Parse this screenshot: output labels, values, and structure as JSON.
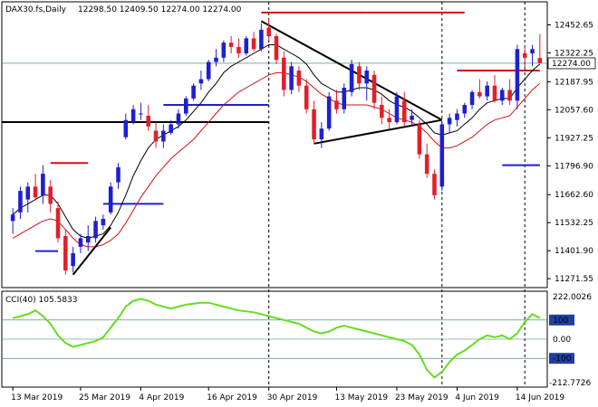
{
  "header": {
    "symbol": "DAX30.fs,Daily",
    "ohlc": "12298.50 12409.50 12274.00 12274.00"
  },
  "cci_header": "CCI(40) 105.5833",
  "colors": {
    "bull": "#1f1fd0",
    "bear": "#e0202a",
    "cci_line": "#66dd22",
    "ma_fast": "#000000",
    "ma_slow": "#d01010",
    "band_upper": "#d01010",
    "band_lower": "#1f1fd0",
    "trendline": "#000000",
    "grid": "#000000",
    "level_line": "#2a7a6a",
    "price_tag_bg": "#ffffff"
  },
  "chart_data": {
    "type": "candlestick",
    "title": "DAX30.fs,Daily",
    "ylim": [
      11230,
      12560
    ],
    "y_ticks": [
      "12452.65",
      "12322.25",
      "12187.95",
      "12057.60",
      "11927.25",
      "11796.90",
      "11662.60",
      "11532.25",
      "11401.90",
      "11271.55"
    ],
    "x_ticks": [
      {
        "idx": 0,
        "label": "13 Mar 2019"
      },
      {
        "idx": 9,
        "label": "25 Mar 2019"
      },
      {
        "idx": 17,
        "label": "4 Apr 2019"
      },
      {
        "idx": 26,
        "label": "16 Apr 2019"
      },
      {
        "idx": 34,
        "label": "30 Apr 2019"
      },
      {
        "idx": 43,
        "label": "13 May 2019"
      },
      {
        "idx": 51,
        "label": "23 May 2019"
      },
      {
        "idx": 59,
        "label": "4 Jun 2019"
      },
      {
        "idx": 67,
        "label": "14 Jun 2019"
      }
    ],
    "current_price": "12274.00",
    "last_price_value": 12274,
    "horizontal_line_value": 12000,
    "candles": [
      {
        "o": 11540,
        "h": 11600,
        "l": 11480,
        "c": 11570
      },
      {
        "o": 11580,
        "h": 11700,
        "l": 11550,
        "c": 11680
      },
      {
        "o": 11640,
        "h": 11720,
        "l": 11580,
        "c": 11700
      },
      {
        "o": 11700,
        "h": 11760,
        "l": 11640,
        "c": 11650
      },
      {
        "o": 11660,
        "h": 11800,
        "l": 11620,
        "c": 11760
      },
      {
        "o": 11700,
        "h": 11730,
        "l": 11580,
        "c": 11620
      },
      {
        "o": 11600,
        "h": 11630,
        "l": 11440,
        "c": 11460
      },
      {
        "o": 11470,
        "h": 11500,
        "l": 11290,
        "c": 11310
      },
      {
        "o": 11330,
        "h": 11420,
        "l": 11300,
        "c": 11390
      },
      {
        "o": 11420,
        "h": 11480,
        "l": 11390,
        "c": 11460
      },
      {
        "o": 11440,
        "h": 11520,
        "l": 11400,
        "c": 11470
      },
      {
        "o": 11460,
        "h": 11560,
        "l": 11440,
        "c": 11540
      },
      {
        "o": 11520,
        "h": 11570,
        "l": 11500,
        "c": 11550
      },
      {
        "o": 11580,
        "h": 11720,
        "l": 11570,
        "c": 11700
      },
      {
        "o": 11720,
        "h": 11810,
        "l": 11690,
        "c": 11790
      },
      {
        "o": 11930,
        "h": 12040,
        "l": 11920,
        "c": 12010
      },
      {
        "o": 12000,
        "h": 12080,
        "l": 11990,
        "c": 12060
      },
      {
        "o": 12040,
        "h": 12090,
        "l": 12010,
        "c": 12040
      },
      {
        "o": 12030,
        "h": 12080,
        "l": 11960,
        "c": 11980
      },
      {
        "o": 11960,
        "h": 12000,
        "l": 11880,
        "c": 11910
      },
      {
        "o": 11910,
        "h": 11990,
        "l": 11880,
        "c": 11960
      },
      {
        "o": 11950,
        "h": 12010,
        "l": 11940,
        "c": 11990
      },
      {
        "o": 11990,
        "h": 12060,
        "l": 11970,
        "c": 12040
      },
      {
        "o": 12040,
        "h": 12120,
        "l": 12030,
        "c": 12110
      },
      {
        "o": 12110,
        "h": 12180,
        "l": 12100,
        "c": 12170
      },
      {
        "o": 12180,
        "h": 12240,
        "l": 12150,
        "c": 12200
      },
      {
        "o": 12200,
        "h": 12290,
        "l": 12190,
        "c": 12280
      },
      {
        "o": 12280,
        "h": 12340,
        "l": 12260,
        "c": 12300
      },
      {
        "o": 12300,
        "h": 12380,
        "l": 12280,
        "c": 12370
      },
      {
        "o": 12370,
        "h": 12400,
        "l": 12320,
        "c": 12350
      },
      {
        "o": 12350,
        "h": 12390,
        "l": 12300,
        "c": 12320
      },
      {
        "o": 12320,
        "h": 12400,
        "l": 12310,
        "c": 12390
      },
      {
        "o": 12390,
        "h": 12420,
        "l": 12330,
        "c": 12340
      },
      {
        "o": 12340,
        "h": 12460,
        "l": 12330,
        "c": 12430
      },
      {
        "o": 12440,
        "h": 12480,
        "l": 12380,
        "c": 12400
      },
      {
        "o": 12400,
        "h": 12410,
        "l": 12270,
        "c": 12290
      },
      {
        "o": 12300,
        "h": 12330,
        "l": 12120,
        "c": 12150
      },
      {
        "o": 12150,
        "h": 12280,
        "l": 12130,
        "c": 12260
      },
      {
        "o": 12240,
        "h": 12260,
        "l": 12140,
        "c": 12170
      },
      {
        "o": 12170,
        "h": 12200,
        "l": 12040,
        "c": 12060
      },
      {
        "o": 12060,
        "h": 12100,
        "l": 11900,
        "c": 11920
      },
      {
        "o": 11920,
        "h": 12000,
        "l": 11880,
        "c": 11970
      },
      {
        "o": 11970,
        "h": 12140,
        "l": 11960,
        "c": 12120
      },
      {
        "o": 12100,
        "h": 12150,
        "l": 12040,
        "c": 12060
      },
      {
        "o": 12060,
        "h": 12180,
        "l": 12040,
        "c": 12160
      },
      {
        "o": 12140,
        "h": 12290,
        "l": 12120,
        "c": 12270
      },
      {
        "o": 12260,
        "h": 12280,
        "l": 12150,
        "c": 12180
      },
      {
        "o": 12180,
        "h": 12260,
        "l": 12100,
        "c": 12240
      },
      {
        "o": 12220,
        "h": 12240,
        "l": 12060,
        "c": 12090
      },
      {
        "o": 12080,
        "h": 12120,
        "l": 11990,
        "c": 12020
      },
      {
        "o": 12020,
        "h": 12060,
        "l": 11970,
        "c": 12000
      },
      {
        "o": 12000,
        "h": 12140,
        "l": 11990,
        "c": 12120
      },
      {
        "o": 12100,
        "h": 12140,
        "l": 11980,
        "c": 12000
      },
      {
        "o": 12010,
        "h": 12060,
        "l": 11980,
        "c": 12030
      },
      {
        "o": 11990,
        "h": 12010,
        "l": 11830,
        "c": 11850
      },
      {
        "o": 11850,
        "h": 11900,
        "l": 11740,
        "c": 11760
      },
      {
        "o": 11760,
        "h": 11780,
        "l": 11640,
        "c": 11660
      },
      {
        "o": 11700,
        "h": 12000,
        "l": 11680,
        "c": 11990
      },
      {
        "o": 11990,
        "h": 12040,
        "l": 11950,
        "c": 12020
      },
      {
        "o": 12010,
        "h": 12060,
        "l": 11980,
        "c": 12040
      },
      {
        "o": 12040,
        "h": 12090,
        "l": 12020,
        "c": 12080
      },
      {
        "o": 12080,
        "h": 12150,
        "l": 12060,
        "c": 12140
      },
      {
        "o": 12140,
        "h": 12200,
        "l": 12110,
        "c": 12120
      },
      {
        "o": 12120,
        "h": 12190,
        "l": 12100,
        "c": 12170
      },
      {
        "o": 12170,
        "h": 12220,
        "l": 12090,
        "c": 12100
      },
      {
        "o": 12100,
        "h": 12160,
        "l": 12080,
        "c": 12150
      },
      {
        "o": 12150,
        "h": 12200,
        "l": 12080,
        "c": 12100
      },
      {
        "o": 12100,
        "h": 12360,
        "l": 12060,
        "c": 12340
      },
      {
        "o": 12320,
        "h": 12360,
        "l": 12250,
        "c": 12300
      },
      {
        "o": 12320,
        "h": 12360,
        "l": 12260,
        "c": 12340
      },
      {
        "o": 12298.5,
        "h": 12409.5,
        "l": 12274,
        "c": 12274
      }
    ],
    "ma_fast": [
      11570,
      11600,
      11620,
      11640,
      11660,
      11660,
      11620,
      11560,
      11500,
      11470,
      11460,
      11470,
      11480,
      11520,
      11580,
      11660,
      11750,
      11820,
      11880,
      11920,
      11940,
      11960,
      11980,
      12010,
      12050,
      12090,
      12140,
      12180,
      12230,
      12260,
      12280,
      12300,
      12320,
      12340,
      12360,
      12360,
      12340,
      12320,
      12300,
      12270,
      12220,
      12180,
      12160,
      12140,
      12140,
      12150,
      12160,
      12160,
      12150,
      12130,
      12100,
      12080,
      12070,
      12050,
      12020,
      11990,
      11950,
      11940,
      11950,
      11960,
      11990,
      12020,
      12060,
      12090,
      12100,
      12110,
      12110,
      12160,
      12200,
      12240,
      12270
    ],
    "ma_slow": [
      11460,
      11480,
      11500,
      11520,
      11540,
      11550,
      11540,
      11500,
      11460,
      11430,
      11420,
      11420,
      11430,
      11450,
      11480,
      11530,
      11590,
      11650,
      11700,
      11750,
      11790,
      11830,
      11860,
      11890,
      11920,
      11960,
      12000,
      12040,
      12080,
      12110,
      12140,
      12160,
      12180,
      12200,
      12220,
      12230,
      12230,
      12220,
      12210,
      12190,
      12160,
      12130,
      12110,
      12090,
      12080,
      12080,
      12080,
      12080,
      12070,
      12060,
      12040,
      12020,
      12010,
      12000,
      11980,
      11950,
      11910,
      11880,
      11880,
      11890,
      11910,
      11930,
      11960,
      11990,
      12010,
      12020,
      12030,
      12070,
      12110,
      12150,
      12180
    ],
    "band_upper": [
      {
        "from": 5,
        "to": 10,
        "v": 11810
      },
      {
        "from": 33,
        "to": 47,
        "v": 12510
      },
      {
        "from": 47,
        "to": 60,
        "v": 12510
      },
      {
        "from": 59,
        "to": 70,
        "v": 12240
      }
    ],
    "band_lower": [
      {
        "from": 3,
        "to": 6,
        "v": 11400
      },
      {
        "from": 12,
        "to": 20,
        "v": 11620
      },
      {
        "from": 20,
        "to": 34,
        "v": 12080
      },
      {
        "from": 65,
        "to": 70,
        "v": 11800
      }
    ],
    "trendlines": [
      {
        "x1": 8,
        "y1": 11290,
        "x2": 13,
        "y2": 11510
      },
      {
        "x1": 33,
        "y1": 12470,
        "x2": 57,
        "y2": 12010
      },
      {
        "x1": 40,
        "y1": 11900,
        "x2": 57,
        "y2": 12010
      }
    ],
    "vlines": [
      34,
      57,
      68
    ],
    "cci": {
      "ylim": [
        -250,
        250
      ],
      "levels": [
        {
          "v": 100,
          "label": "100"
        },
        {
          "v": 0,
          "label": "0.00"
        },
        {
          "v": -100,
          "label": "-100"
        }
      ],
      "top_label": "222.0026",
      "bottom_label": "-212.7726",
      "values": [
        110,
        120,
        130,
        150,
        120,
        80,
        20,
        -20,
        -40,
        -30,
        -20,
        -10,
        10,
        60,
        110,
        170,
        200,
        210,
        200,
        180,
        170,
        160,
        170,
        180,
        185,
        190,
        190,
        180,
        170,
        160,
        150,
        145,
        140,
        130,
        120,
        110,
        100,
        90,
        80,
        60,
        40,
        30,
        40,
        60,
        70,
        60,
        50,
        40,
        30,
        20,
        10,
        0,
        -10,
        -30,
        -80,
        -160,
        -200,
        -170,
        -120,
        -80,
        -60,
        -30,
        0,
        20,
        10,
        20,
        0,
        30,
        90,
        130,
        110
      ]
    }
  }
}
